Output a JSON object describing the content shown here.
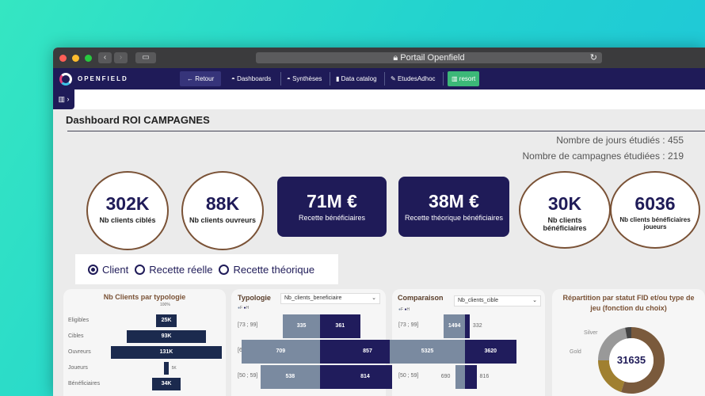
{
  "browser": {
    "url": "Portail Openfield"
  },
  "nav": {
    "brand": "OPENFIELD",
    "items": [
      "← Retour",
      "Dashboards",
      "Synthèses",
      "Data catalog",
      "EtudesAdhoc",
      "resort"
    ]
  },
  "dashboard": {
    "title": "Dashboard ROI CAMPAGNES",
    "stats": [
      {
        "label": "Nombre de jours étudiés : ",
        "value": "455"
      },
      {
        "label": "Nombre de campagnes étudiées : ",
        "value": "219"
      }
    ],
    "kpis": [
      {
        "value": "302K",
        "label": "Nb clients ciblés"
      },
      {
        "value": "88K",
        "label": "Nb clients ouvreurs"
      },
      {
        "value": "71M €",
        "label": "Recette bénéficiaires"
      },
      {
        "value": "38M €",
        "label": "Recette théorique bénéficiaires"
      },
      {
        "value": "30K",
        "label": "Nb clients bénéficiaires"
      },
      {
        "value": "6036",
        "label": "Nb clients bénéficiaires joueurs"
      }
    ],
    "radios": {
      "options": [
        "Client",
        "Recette réelle",
        "Recette théorique"
      ],
      "selected": "Client"
    }
  },
  "chart_data": [
    {
      "type": "bar",
      "title": "Nb Clients par typologie",
      "annotation": "100%",
      "categories": [
        "Eligibles",
        "Cibles",
        "Ouvreurs",
        "Joueurs",
        "Bénéficiaires"
      ],
      "values": [
        25,
        93,
        131,
        5,
        34
      ],
      "labels": [
        "25K",
        "93K",
        "131K",
        "5K",
        "34K"
      ],
      "color": "#1b2a4e"
    },
    {
      "type": "bar",
      "title": "Typologie",
      "dropdown": "Nb_clients_beneficiaire",
      "legend": [
        "F",
        "H"
      ],
      "categories": [
        "[73 ; 99]",
        "[60 ; 72]",
        "[50 ; 59]"
      ],
      "series": [
        {
          "name": "F",
          "values": [
            335,
            709,
            538
          ],
          "color": "#7a8aa0"
        },
        {
          "name": "H",
          "values": [
            361,
            857,
            814
          ],
          "color": "#201c5c"
        }
      ]
    },
    {
      "type": "bar",
      "title": "Comparaison",
      "dropdown": "Nb_clients_cible",
      "legend": [
        "F",
        "H"
      ],
      "categories": [
        "[73 ; 99]",
        "[60 ; 72]",
        "[50 ; 59]"
      ],
      "series": [
        {
          "name": "F",
          "values": [
            1494,
            5325,
            690
          ],
          "color": "#7a8aa0"
        },
        {
          "name": "H",
          "values": [
            332,
            3620,
            816
          ],
          "color": "#201c5c"
        }
      ]
    },
    {
      "type": "pie",
      "title": "Répartition par statut FID et/ou type de jeu (fonction du choix)",
      "center": "31635",
      "labels": [
        "Silver",
        "Gold"
      ],
      "colors": [
        "#7a5a3c",
        "#a08030",
        "#999999",
        "#444444"
      ]
    }
  ]
}
